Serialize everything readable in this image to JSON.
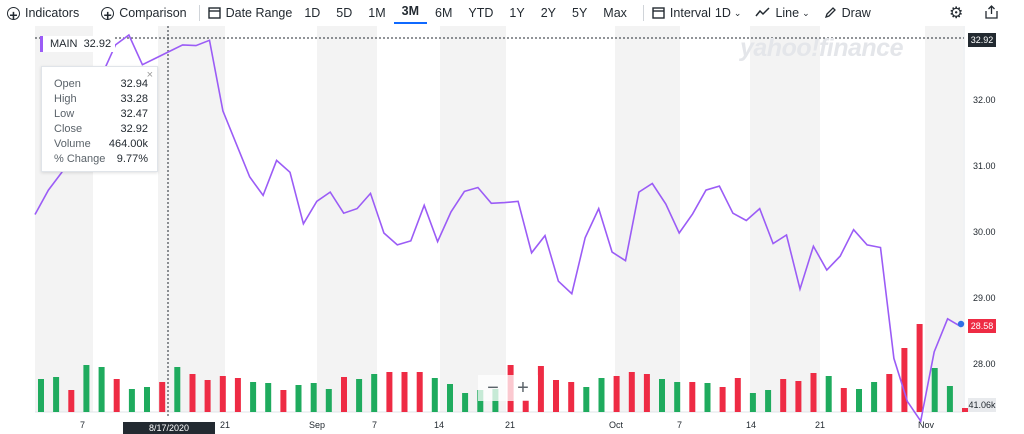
{
  "toolbar": {
    "indicators": "Indicators",
    "comparison": "Comparison",
    "date_range": "Date Range",
    "ranges": [
      "1D",
      "5D",
      "1M",
      "3M",
      "6M",
      "YTD",
      "1Y",
      "2Y",
      "5Y",
      "Max"
    ],
    "active_range": "3M",
    "interval": "Interval",
    "interval_value": "1D",
    "chart_type": "Line",
    "draw": "Draw"
  },
  "watermark": "yahoo!finance",
  "main_label": {
    "name": "MAIN",
    "value": "32.92"
  },
  "tooltip": {
    "rows": [
      {
        "label": "Open",
        "value": "32.94"
      },
      {
        "label": "High",
        "value": "33.28"
      },
      {
        "label": "Low",
        "value": "32.47"
      },
      {
        "label": "Close",
        "value": "32.92"
      },
      {
        "label": "Volume",
        "value": "464.00k"
      },
      {
        "label": "% Change",
        "value": "9.77%"
      }
    ]
  },
  "crosshair_date": "8/17/2020",
  "zoom": {
    "minus": "−",
    "plus": "+"
  },
  "colors": {
    "line": "#9b5cf6",
    "up": "#1fab5e",
    "down": "#ee2b44",
    "band": "#f3f3f3"
  },
  "chart_data": {
    "type": "line",
    "x_tick_labels": [
      "7",
      "17",
      "21",
      "Sep",
      "7",
      "14",
      "21",
      "Oct",
      "7",
      "14",
      "21",
      "Nov"
    ],
    "y_tick_labels": [
      "28.00",
      "29.00",
      "30.00",
      "31.00",
      "32.00"
    ],
    "ylim": [
      27.0,
      33.1
    ],
    "series": [
      {
        "name": "MAIN",
        "values": [
          30.28,
          30.65,
          30.92,
          31.4,
          31.95,
          32.4,
          32.85,
          33.0,
          32.55,
          32.65,
          32.75,
          32.85,
          32.84,
          32.92,
          31.85,
          31.35,
          30.85,
          30.57,
          31.1,
          30.92,
          30.14,
          30.48,
          30.62,
          30.3,
          30.37,
          30.6,
          30.0,
          29.82,
          29.88,
          30.42,
          29.87,
          30.32,
          30.63,
          30.69,
          30.45,
          30.46,
          30.48,
          29.7,
          29.96,
          29.27,
          29.08,
          29.93,
          30.37,
          29.71,
          29.58,
          30.62,
          30.75,
          30.44,
          30.0,
          30.29,
          30.65,
          30.71,
          30.3,
          30.19,
          30.37,
          29.84,
          29.97,
          29.15,
          29.8,
          29.44,
          29.65,
          30.05,
          29.82,
          29.78,
          28.1,
          27.45,
          27.15,
          28.2,
          28.7,
          28.58
        ]
      }
    ],
    "volume": {
      "axis_label": "41.06k",
      "bars": [
        {
          "h": 33,
          "up": true
        },
        {
          "h": 35,
          "up": true
        },
        {
          "h": 22,
          "up": false
        },
        {
          "h": 47,
          "up": true
        },
        {
          "h": 45,
          "up": true
        },
        {
          "h": 33,
          "up": false
        },
        {
          "h": 23,
          "up": true
        },
        {
          "h": 25,
          "up": true
        },
        {
          "h": 30,
          "up": false
        },
        {
          "h": 45,
          "up": true
        },
        {
          "h": 38,
          "up": false
        },
        {
          "h": 32,
          "up": false
        },
        {
          "h": 36,
          "up": false
        },
        {
          "h": 34,
          "up": false
        },
        {
          "h": 30,
          "up": true
        },
        {
          "h": 29,
          "up": true
        },
        {
          "h": 22,
          "up": false
        },
        {
          "h": 27,
          "up": true
        },
        {
          "h": 29,
          "up": true
        },
        {
          "h": 23,
          "up": true
        },
        {
          "h": 35,
          "up": false
        },
        {
          "h": 33,
          "up": true
        },
        {
          "h": 38,
          "up": true
        },
        {
          "h": 40,
          "up": false
        },
        {
          "h": 40,
          "up": false
        },
        {
          "h": 40,
          "up": false
        },
        {
          "h": 34,
          "up": true
        },
        {
          "h": 28,
          "up": true
        },
        {
          "h": 19,
          "up": true
        },
        {
          "h": 22,
          "up": true
        },
        {
          "h": 23,
          "up": true
        },
        {
          "h": 47,
          "up": false
        },
        {
          "h": 12,
          "up": false
        },
        {
          "h": 46,
          "up": false
        },
        {
          "h": 32,
          "up": false
        },
        {
          "h": 30,
          "up": false
        },
        {
          "h": 25,
          "up": true
        },
        {
          "h": 34,
          "up": true
        },
        {
          "h": 36,
          "up": false
        },
        {
          "h": 40,
          "up": false
        },
        {
          "h": 38,
          "up": false
        },
        {
          "h": 33,
          "up": true
        },
        {
          "h": 30,
          "up": true
        },
        {
          "h": 30,
          "up": false
        },
        {
          "h": 29,
          "up": true
        },
        {
          "h": 25,
          "up": false
        },
        {
          "h": 34,
          "up": false
        },
        {
          "h": 19,
          "up": true
        },
        {
          "h": 22,
          "up": true
        },
        {
          "h": 33,
          "up": false
        },
        {
          "h": 31,
          "up": false
        },
        {
          "h": 39,
          "up": false
        },
        {
          "h": 36,
          "up": true
        },
        {
          "h": 24,
          "up": false
        },
        {
          "h": 23,
          "up": true
        },
        {
          "h": 30,
          "up": true
        },
        {
          "h": 38,
          "up": false
        },
        {
          "h": 64,
          "up": false
        },
        {
          "h": 88,
          "up": false
        },
        {
          "h": 44,
          "up": true
        },
        {
          "h": 26,
          "up": true
        },
        {
          "h": 4,
          "up": false
        }
      ]
    }
  }
}
